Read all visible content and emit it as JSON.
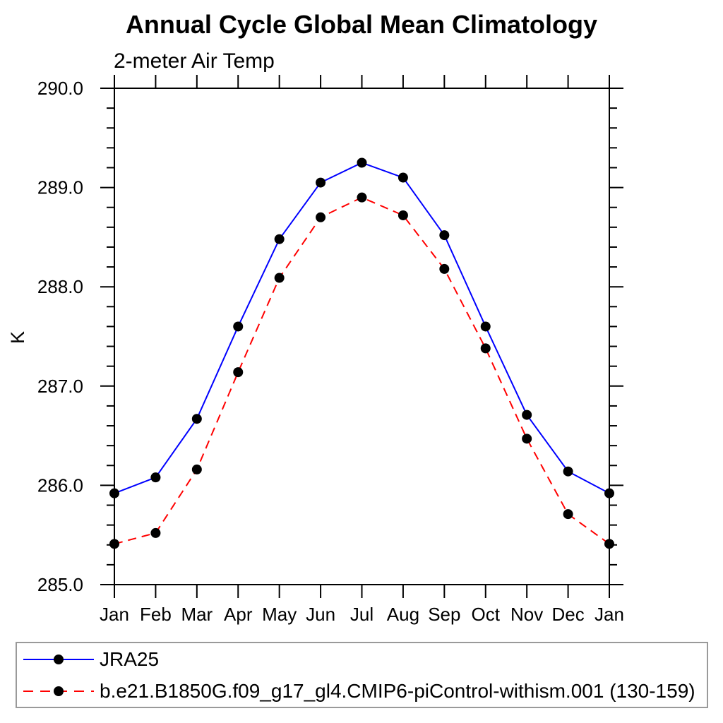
{
  "header": {
    "title": "Annual Cycle Global Mean Climatology",
    "subtitle": "2-meter Air Temp"
  },
  "chart_data": {
    "type": "line",
    "title": "Annual Cycle Global Mean Climatology",
    "subtitle": "2-meter Air Temp",
    "xlabel": "",
    "ylabel": "K",
    "ylim": [
      285.0,
      290.0
    ],
    "ytick_interval": 1.0,
    "yminor_interval": 0.2,
    "ytick_labels": [
      "285.0",
      "286.0",
      "287.0",
      "288.0",
      "289.0",
      "290.0"
    ],
    "categories": [
      "Jan",
      "Feb",
      "Mar",
      "Apr",
      "May",
      "Jun",
      "Jul",
      "Aug",
      "Sep",
      "Oct",
      "Nov",
      "Dec",
      "Jan"
    ],
    "grid": false,
    "frame": true,
    "tick_style": "outward-all-sides",
    "legend_position": "bottom",
    "marker": {
      "shape": "circle",
      "color": "#000000",
      "radius": 7
    },
    "axis_color": "#000000",
    "series": [
      {
        "name": "JRA25",
        "color": "#0000ff",
        "style": "solid",
        "values": [
          285.92,
          286.08,
          286.67,
          287.6,
          288.48,
          289.05,
          289.25,
          289.1,
          288.52,
          287.6,
          286.71,
          286.14,
          285.92
        ]
      },
      {
        "name": "b.e21.B1850G.f09_g17_gl4.CMIP6-piControl-withism.001 (130-159)",
        "color": "#ff0000",
        "style": "dashed",
        "values": [
          285.41,
          285.52,
          286.16,
          287.14,
          288.09,
          288.7,
          288.9,
          288.72,
          288.18,
          287.38,
          286.47,
          285.71,
          285.41
        ]
      }
    ]
  }
}
